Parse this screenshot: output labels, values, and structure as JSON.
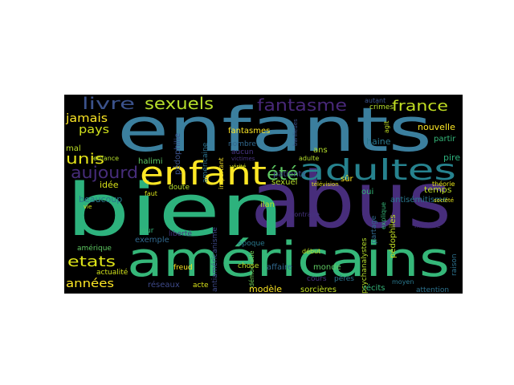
{
  "colors": {
    "background": "#000000",
    "page": "#ffffff",
    "palette": [
      "#440154",
      "#3b528b",
      "#21918c",
      "#29af7f",
      "#5ec962",
      "#fde725",
      "#472d7b",
      "#2c728e"
    ]
  },
  "words": [
    "abus",
    "bien",
    "enfants",
    "américains",
    "enfant",
    "adultes",
    "livre",
    "sexuels",
    "fantasme",
    "aujourd",
    "été",
    "france",
    "jamais",
    "pays",
    "unis",
    "etats",
    "années",
    "pédophilie",
    "américaine",
    "halimi",
    "enfance",
    "idée",
    "beaucoup",
    "mal",
    "fantasmes",
    "nombre",
    "aucun",
    "victimes",
    "vérité",
    "important",
    "antiaméricanisme",
    "adulte",
    "ans",
    "haine",
    "crimes",
    "partir",
    "nouvelle",
    "pire",
    "temps",
    "sexuel",
    "patients",
    "faut",
    "doute",
    "ilan",
    "démocratie",
    "contraire",
    "psychanalystes",
    "oui",
    "pédophiles",
    "antisémitisme",
    "théorie",
    "société",
    "meurtre",
    "raison",
    "exemple",
    "jour",
    "liberté",
    "freud",
    "époque",
    "chose",
    "affaire",
    "monde",
    "début",
    "cours",
    "pères",
    "récits",
    "moyen",
    "attention",
    "sorcières",
    "modèle",
    "acte",
    "réseaux",
    "actualité",
    "amérique",
    "sûr",
    "télévision",
    "autant",
    "agit",
    "banlieues",
    "partage",
    "explique",
    "vie"
  ]
}
